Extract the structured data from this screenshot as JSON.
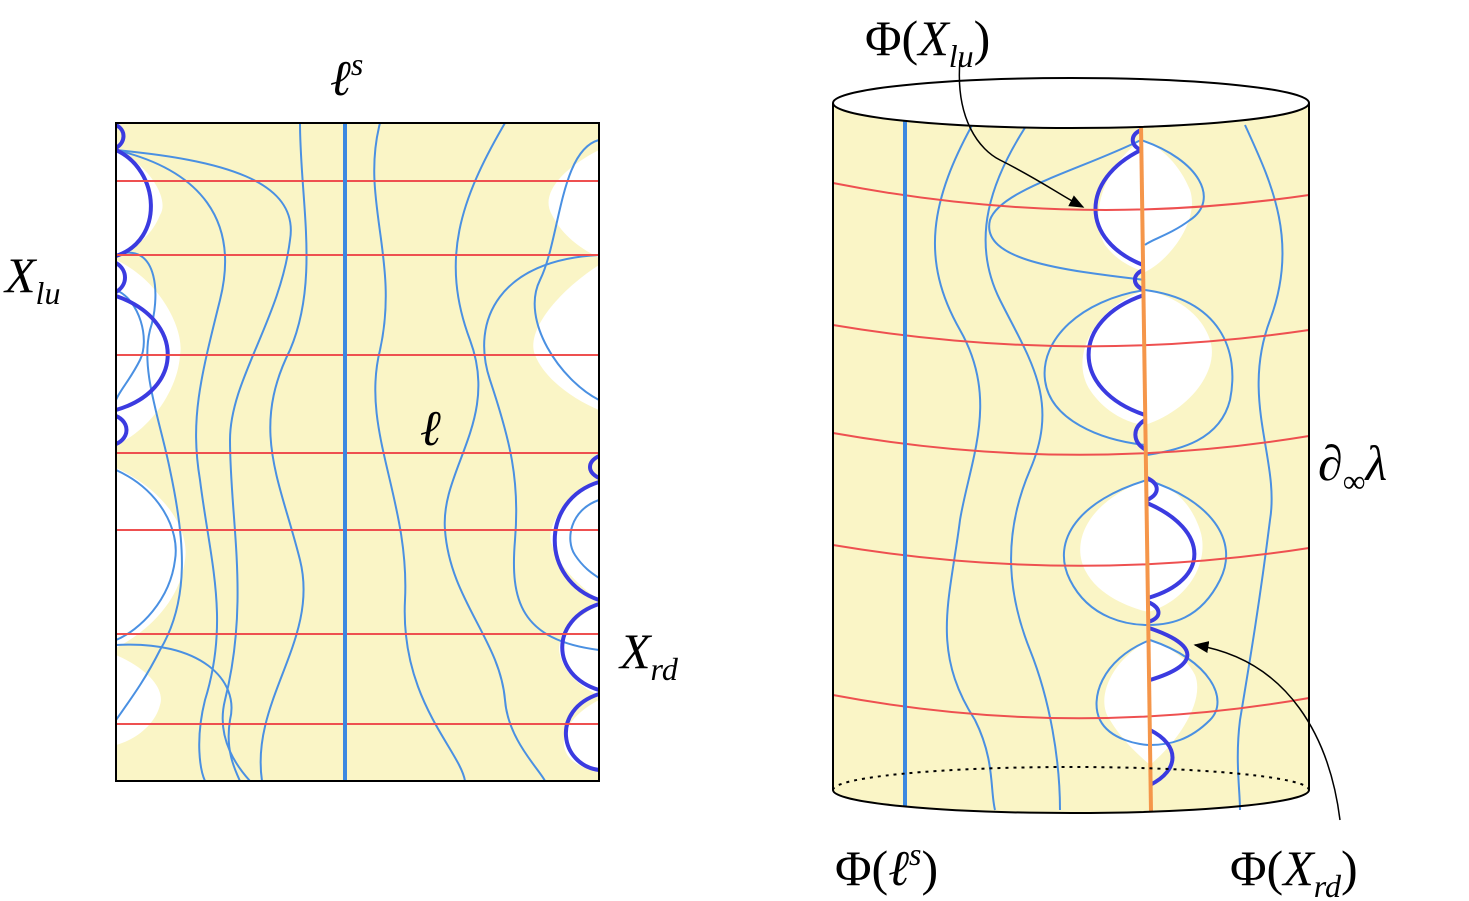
{
  "left_panel": {
    "labels": {
      "stable_leaf": {
        "base": "ℓ",
        "sup": "s"
      },
      "x_lu": {
        "base": "X",
        "sub": "lu"
      },
      "leaf": {
        "base": "ℓ"
      },
      "x_rd": {
        "base": "X",
        "sub": "rd"
      }
    }
  },
  "right_panel": {
    "labels": {
      "phi_x_lu": {
        "pre": "Φ(",
        "base": "X",
        "sub": "lu",
        "post": ")"
      },
      "boundary": {
        "pre": "∂",
        "sub": "∞",
        "base": "λ"
      },
      "phi_stable_leaf": {
        "pre": "Φ(",
        "base": "ℓ",
        "sup": "s",
        "post": ")"
      },
      "phi_x_rd": {
        "pre": "Φ(",
        "base": "X",
        "sub": "rd",
        "post": ")"
      }
    }
  }
}
